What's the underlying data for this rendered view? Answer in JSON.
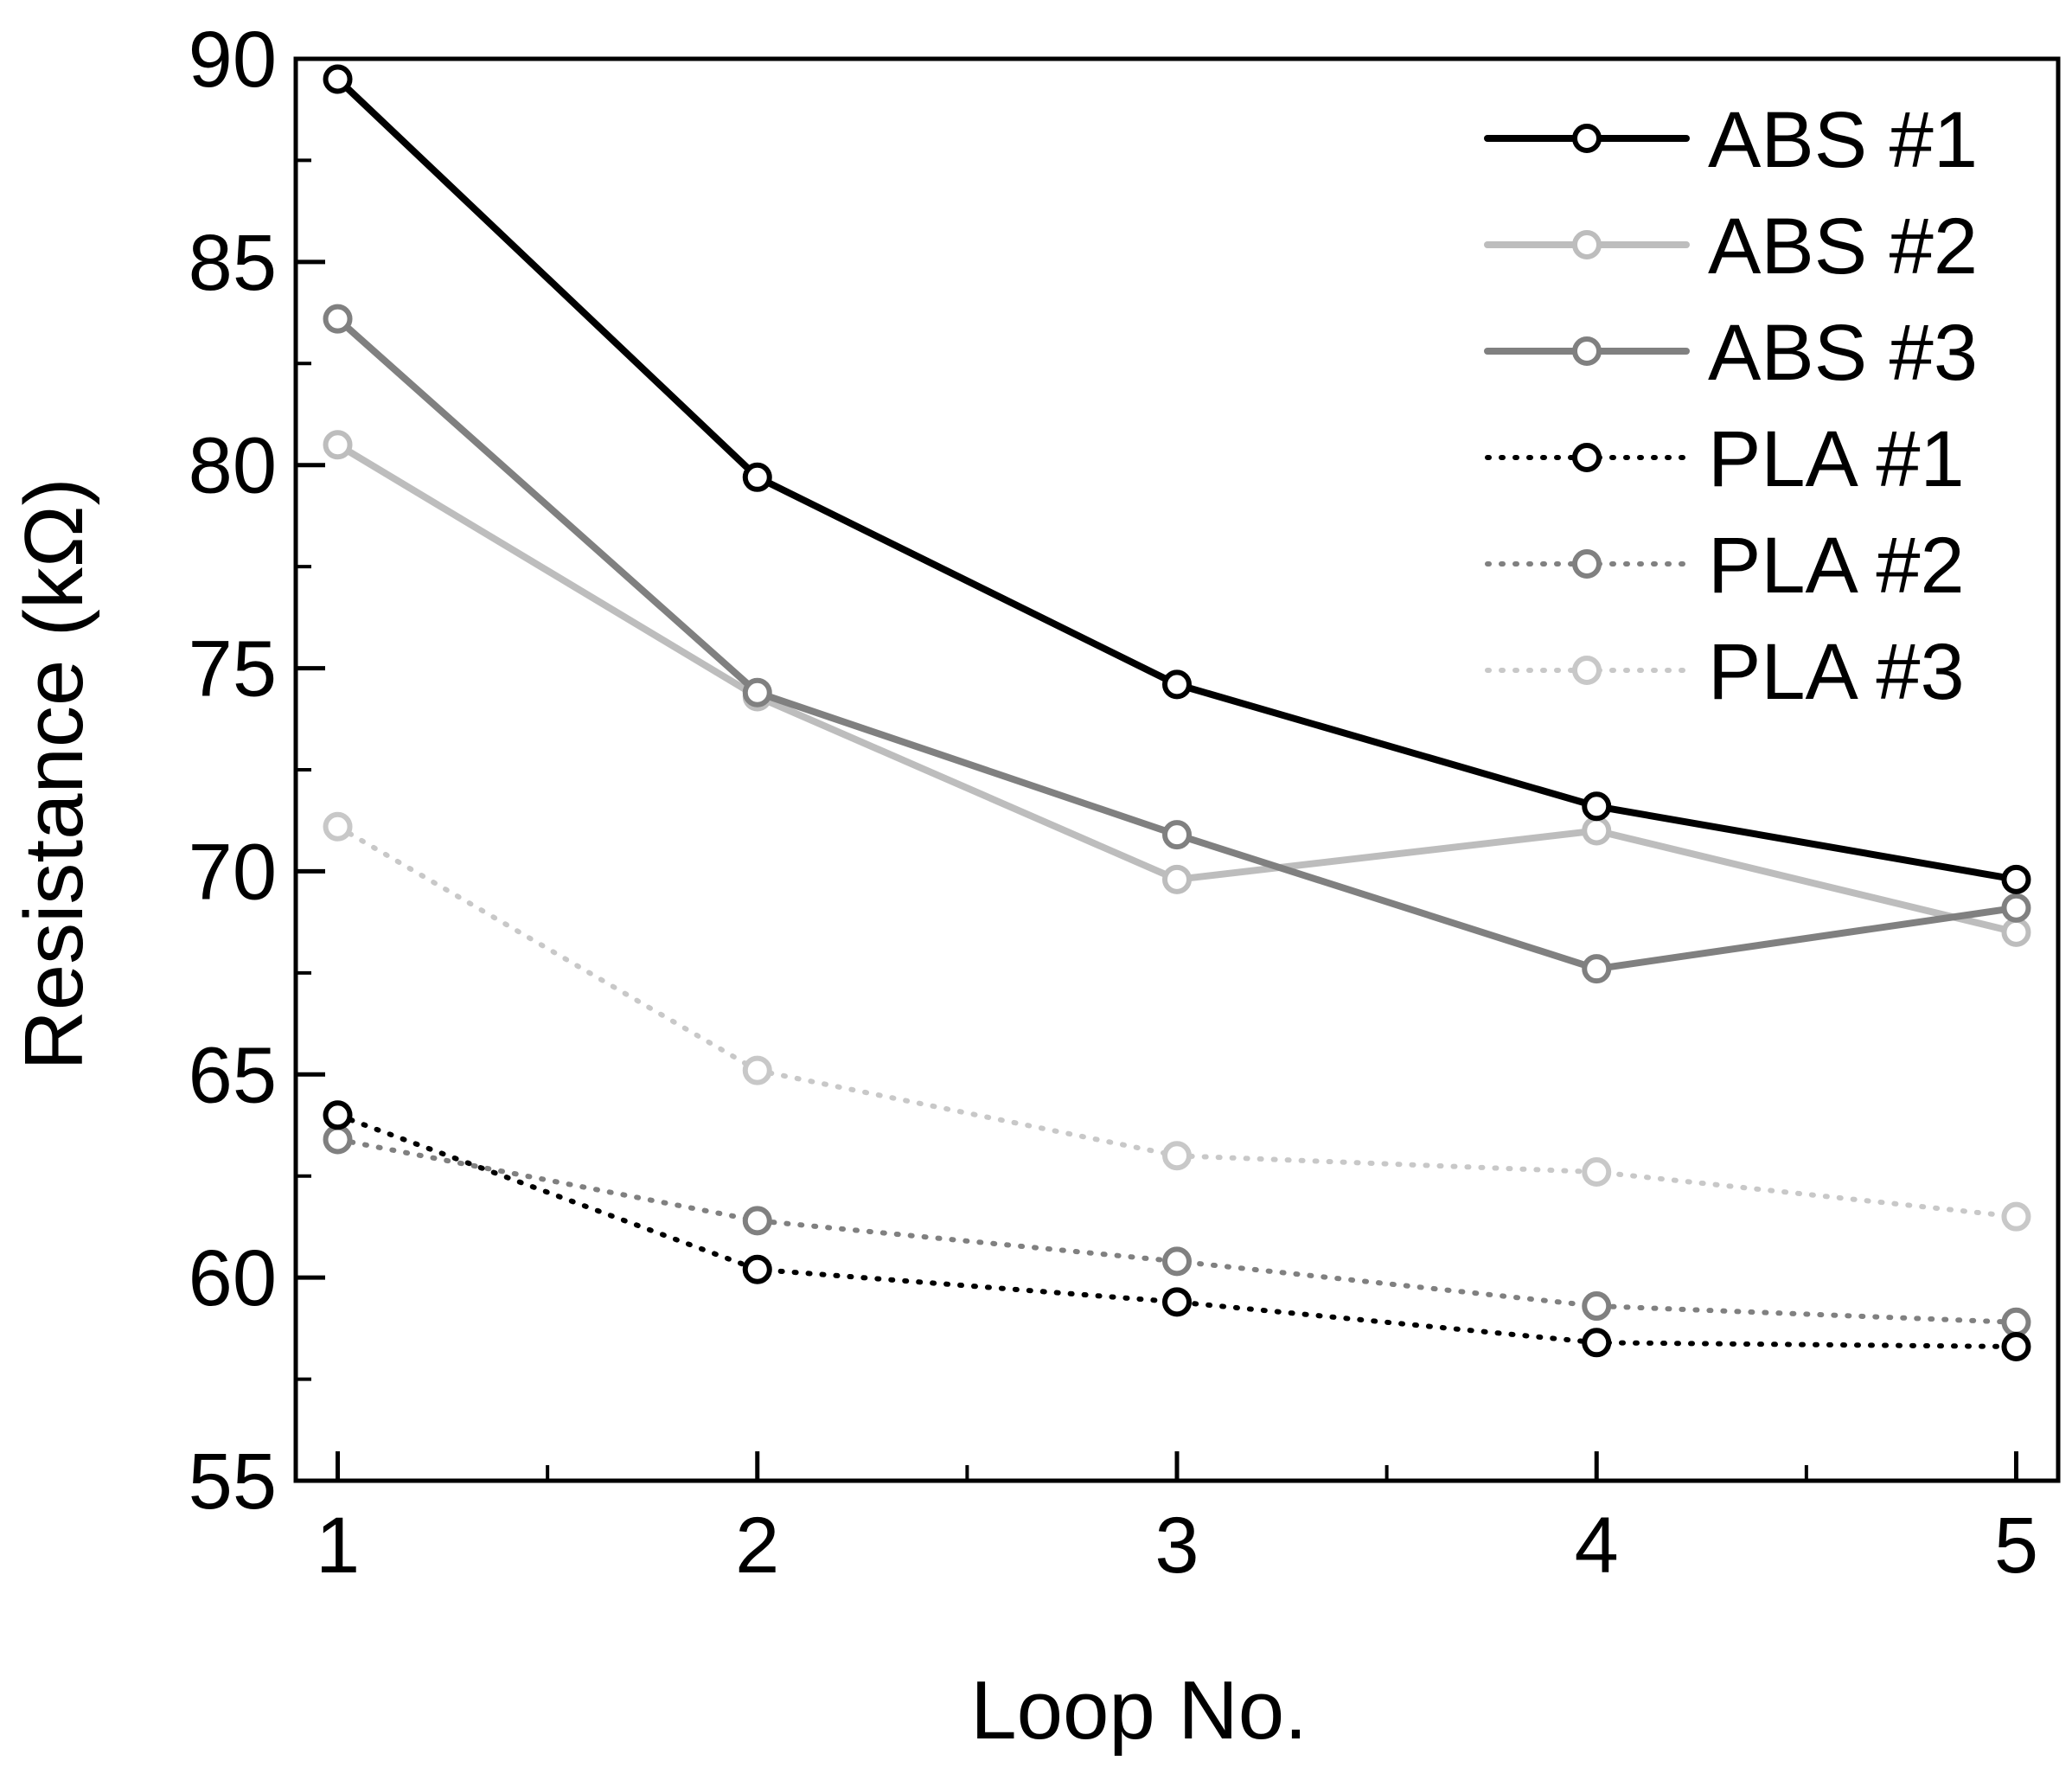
{
  "chart_data": {
    "type": "line",
    "title": "",
    "xlabel": "Loop No.",
    "ylabel": "Resistance (kΩ)",
    "xlim": [
      0.9,
      5.1
    ],
    "ylim": [
      55,
      90
    ],
    "x": [
      1,
      2,
      3,
      4,
      5
    ],
    "x_ticks": [
      "1",
      "2",
      "3",
      "4",
      "5"
    ],
    "y_ticks": [
      "55",
      "60",
      "65",
      "70",
      "75",
      "80",
      "85",
      "90"
    ],
    "legend_position": "top-right",
    "grid": false,
    "series": [
      {
        "name": "ABS #1",
        "values": [
          89.5,
          79.7,
          74.6,
          71.6,
          69.8
        ],
        "color": "#000000",
        "style": "solid"
      },
      {
        "name": "ABS #2",
        "values": [
          80.5,
          74.3,
          69.8,
          71.0,
          68.5
        ],
        "color": "#bdbdbd",
        "style": "solid"
      },
      {
        "name": "ABS #3",
        "values": [
          83.6,
          74.4,
          70.9,
          67.6,
          69.1
        ],
        "color": "#808080",
        "style": "solid"
      },
      {
        "name": "PLA #1",
        "values": [
          64.0,
          60.2,
          59.4,
          58.4,
          58.3
        ],
        "color": "#000000",
        "style": "dotted"
      },
      {
        "name": "PLA #2",
        "values": [
          63.4,
          61.4,
          60.4,
          59.3,
          58.9
        ],
        "color": "#808080",
        "style": "dotted"
      },
      {
        "name": "PLA #3",
        "values": [
          71.1,
          65.1,
          63.0,
          62.6,
          61.5
        ],
        "color": "#c8c8c8",
        "style": "dotted"
      }
    ]
  }
}
